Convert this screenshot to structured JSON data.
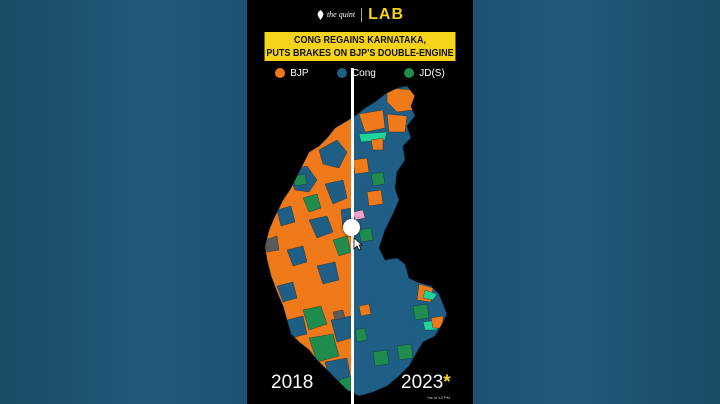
{
  "brand": {
    "quint_logo_text": "the quint",
    "lab_text": "LAB"
  },
  "headline": {
    "line1": "CONG REGAINS KARNATAKA,",
    "line2": "PUTS BRAKES ON BJP'S DOUBLE-ENGINE"
  },
  "legend": [
    {
      "label": "BJP",
      "color": "#f07a1a"
    },
    {
      "label": "Cong",
      "color": "#1f5f86"
    },
    {
      "label": "JD(S)",
      "color": "#1f8c4d"
    }
  ],
  "colors": {
    "bjp": "#f07a1a",
    "cong": "#1f5f86",
    "jds": "#1f8c4d",
    "others_teal": "#1fd39a",
    "others_pink": "#f2a0c8",
    "others_grey": "#5a5a5a",
    "accent_yellow": "#f5d31b"
  },
  "map": {
    "left_year": "2018",
    "right_year": "2023",
    "right_year_marker": "*",
    "footnote": "*as of 12 PM"
  }
}
